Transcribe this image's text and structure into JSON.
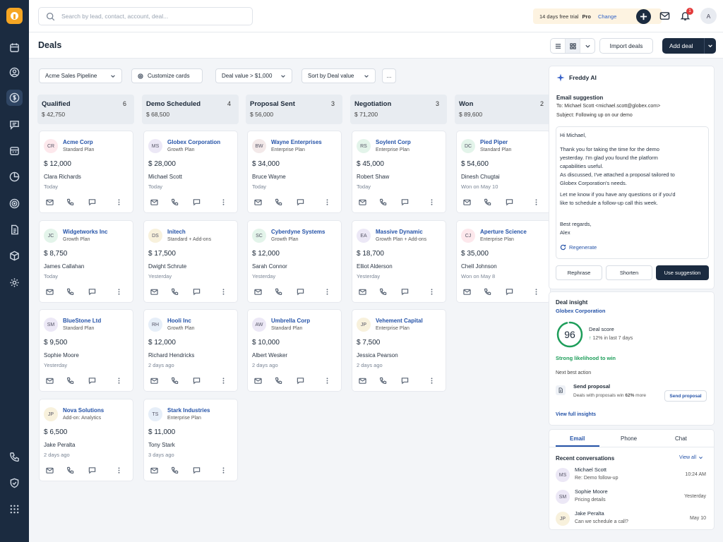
{
  "search": {
    "placeholder": "Search by lead, contact, account, deal..."
  },
  "topbar": {
    "trial_text": "14 days free trial",
    "plan": "Pro",
    "change_label": "Change",
    "notification_count": "1",
    "avatar_initial": "A"
  },
  "header": {
    "title": "Deals",
    "import_label": "Import deals",
    "add_label": "Add deal"
  },
  "filters": {
    "pipeline": "Acme Sales Pipeline",
    "customize": "Customize cards",
    "deal_value": "Deal value > $1,000",
    "sort": "Sort by Deal value",
    "more": "..."
  },
  "columns": [
    {
      "name": "Qualified",
      "count": "6",
      "amount": "$ 42,750",
      "cards": [
        {
          "initials": "CR",
          "company": "Acme Corp",
          "plan": "Standard Plan",
          "value": "$ 12,000",
          "contact": "Clara Richards",
          "date": "Today",
          "avatar_color": "#fde8ec"
        },
        {
          "initials": "JC",
          "company": "Widgetworks Inc",
          "plan": "Growth Plan",
          "value": "$ 8,750",
          "contact": "James Callahan",
          "date": "Today",
          "avatar_color": "#e3f4ea"
        },
        {
          "initials": "SM",
          "company": "BlueStone Ltd",
          "plan": "Standard Plan",
          "value": "$ 9,500",
          "contact": "Sophie Moore",
          "date": "Yesterday",
          "avatar_color": "#ece8f6"
        },
        {
          "initials": "JP",
          "company": "Nova Solutions",
          "plan": "Add-on: Analytics",
          "value": "$ 6,500",
          "contact": "Jake Peralta",
          "date": "2 days ago",
          "avatar_color": "#f8f1dc"
        }
      ]
    },
    {
      "name": "Demo Scheduled",
      "count": "4",
      "amount": "$ 68,500",
      "cards": [
        {
          "initials": "MS",
          "company": "Globex Corporation",
          "plan": "Growth Plan",
          "value": "$ 28,000",
          "contact": "Michael Scott",
          "date": "Today",
          "avatar_color": "#ece8f6"
        },
        {
          "initials": "DS",
          "company": "Initech",
          "plan": "Standard + Add-ons",
          "value": "$ 17,500",
          "contact": "Dwight Schrute",
          "date": "Yesterday",
          "avatar_color": "#f8f1dc"
        },
        {
          "initials": "RH",
          "company": "Hooli Inc",
          "plan": "Growth Plan",
          "value": "$ 12,000",
          "contact": "Richard Hendricks",
          "date": "2 days ago",
          "avatar_color": "#e6eef8"
        },
        {
          "initials": "TS",
          "company": "Stark Industries",
          "plan": "Enterprise Plan",
          "value": "$ 11,000",
          "contact": "Tony Stark",
          "date": "3 days ago",
          "avatar_color": "#e6eef8"
        }
      ]
    },
    {
      "name": "Proposal Sent",
      "count": "3",
      "amount": "$ 56,000",
      "cards": [
        {
          "initials": "BW",
          "company": "Wayne Enterprises",
          "plan": "Enterprise Plan",
          "value": "$ 34,000",
          "contact": "Bruce Wayne",
          "date": "Today",
          "avatar_color": "#f3e9e9"
        },
        {
          "initials": "SC",
          "company": "Cyberdyne Systems",
          "plan": "Growth Plan",
          "value": "$ 12,000",
          "contact": "Sarah Connor",
          "date": "Yesterday",
          "avatar_color": "#e3f4ea"
        },
        {
          "initials": "AW",
          "company": "Umbrella Corp",
          "plan": "Standard Plan",
          "value": "$ 10,000",
          "contact": "Albert Wesker",
          "date": "2 days ago",
          "avatar_color": "#ece8f6"
        }
      ]
    },
    {
      "name": "Negotiation",
      "count": "3",
      "amount": "$ 71,200",
      "cards": [
        {
          "initials": "RS",
          "company": "Soylent Corp",
          "plan": "Enterprise Plan",
          "value": "$ 45,000",
          "contact": "Robert Shaw",
          "date": "Today",
          "avatar_color": "#e3f4ea"
        },
        {
          "initials": "EA",
          "company": "Massive Dynamic",
          "plan": "Growth Plan + Add-ons",
          "value": "$ 18,700",
          "contact": "Elliot Alderson",
          "date": "Yesterday",
          "avatar_color": "#ece8f6"
        },
        {
          "initials": "JP",
          "company": "Vehement Capital",
          "plan": "Enterprise Plan",
          "value": "$ 7,500",
          "contact": "Jessica Pearson",
          "date": "2 days ago",
          "avatar_color": "#f8f1dc"
        }
      ]
    },
    {
      "name": "Won",
      "count": "2",
      "amount": "$ 89,600",
      "cards": [
        {
          "initials": "DC",
          "company": "Pied Piper",
          "plan": "Standard Plan",
          "value": "$ 54,600",
          "contact": "Dinesh Chugtai",
          "date": "Won on May 10",
          "avatar_color": "#e3f4ea"
        },
        {
          "initials": "CJ",
          "company": "Aperture Science",
          "plan": "Enterprise Plan",
          "value": "$ 35,000",
          "contact": "Chell Johnson",
          "date": "Won on May 8",
          "avatar_color": "#fde8ec"
        }
      ]
    }
  ],
  "freddy": {
    "title": "Freddy AI",
    "section": "Email suggestion",
    "to": "To: Michael Scott <michael.scott@globex.com>",
    "subject": "Subject: Following up on our demo",
    "greeting": "Hi Michael,",
    "p1": "Thank you for taking the time for the demo yesterday. I'm glad you found the platform capabilities useful.",
    "p2": "As discussed, I've attached a proposal tailored to Globex Corporation's needs.",
    "p3": "Let me know if you have any questions or if you'd like to schedule a follow-up call this week.",
    "signoff": "Best regards,",
    "signer": "Alex",
    "regenerate": "Regenerate",
    "rephrase": "Rephrase",
    "shorten": "Shorten",
    "use": "Use suggestion"
  },
  "insight": {
    "title": "Deal insight",
    "company": "Globex Corporation",
    "score": "96",
    "score_level": 0.96,
    "score_label": "Deal score",
    "trend": "12% in last 7 days",
    "likelihood": "Strong likelihood to win",
    "next_label": "Next best action",
    "action_title": "Send proposal",
    "action_desc_pre": "Deals with proposals win ",
    "action_desc_pct": "62%",
    "action_desc_post": " more",
    "action_button": "Send proposal",
    "view_all": "View full insights"
  },
  "conversations": {
    "tabs": [
      "Email",
      "Phone",
      "Chat"
    ],
    "title": "Recent conversations",
    "view_all": "View all",
    "items": [
      {
        "initials": "MS",
        "name": "Michael Scott",
        "snippet": "Re: Demo follow-up",
        "time": "10:24 AM",
        "avatar_color": "#ece8f6"
      },
      {
        "initials": "SM",
        "name": "Sophie Moore",
        "snippet": "Pricing details",
        "time": "Yesterday",
        "avatar_color": "#ece8f6"
      },
      {
        "initials": "JP",
        "name": "Jake Peralta",
        "snippet": "Can we schedule a call?",
        "time": "May 10",
        "avatar_color": "#f8f1dc"
      }
    ]
  },
  "colors": {
    "navy": "#1b2b40",
    "accent": "#2553a8",
    "success": "#1e9e5a",
    "trial_bg": "#fdf3e1"
  }
}
